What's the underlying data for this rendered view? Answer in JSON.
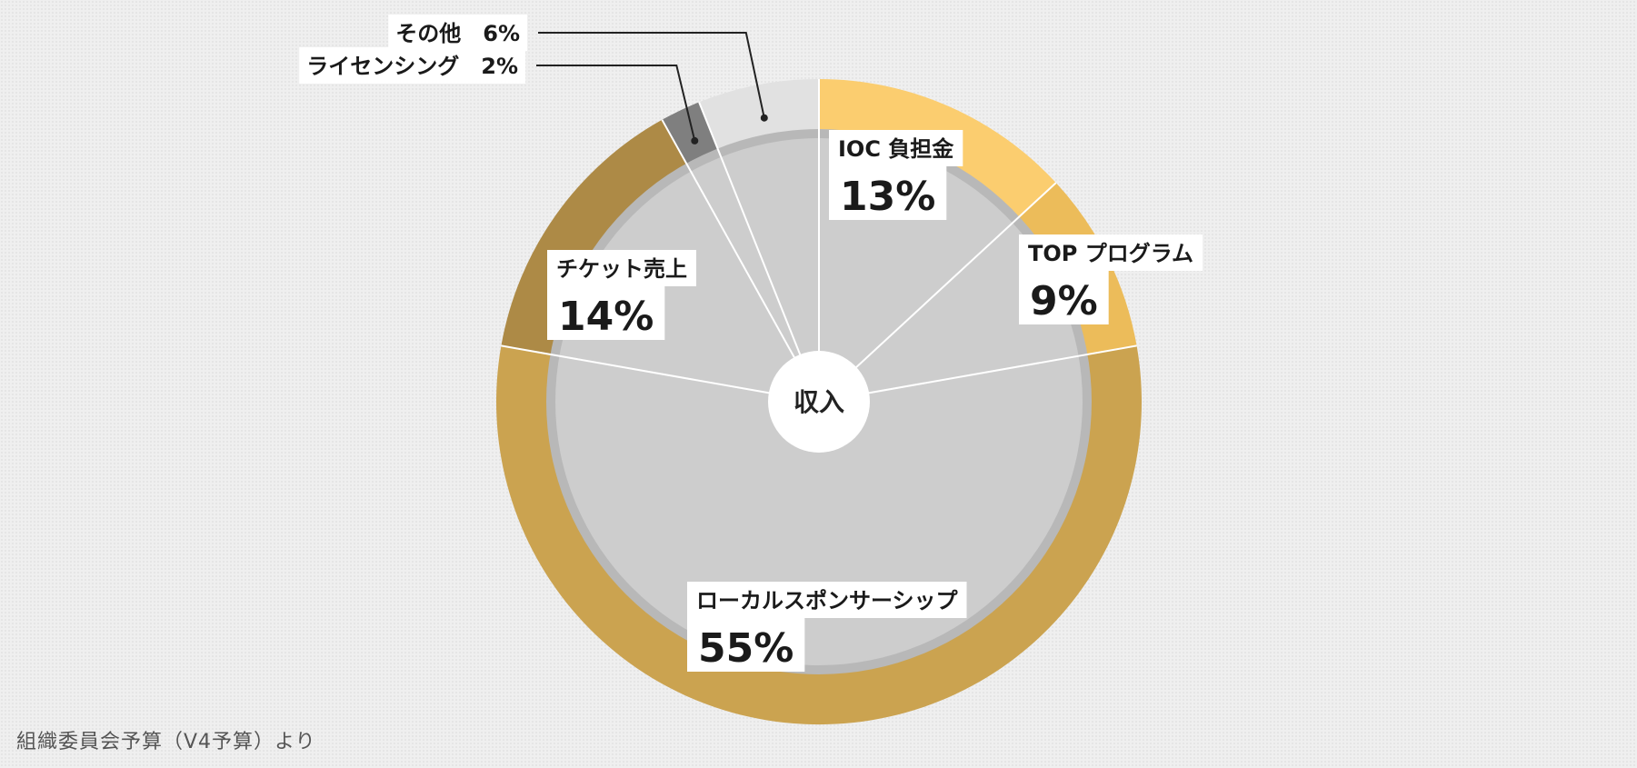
{
  "chart_data": {
    "type": "pie",
    "center_label": "収入",
    "slices": [
      {
        "label": "IOC 負担金",
        "value": 13,
        "value_text": "13%",
        "color": "#fbcd6f",
        "label_style": "large"
      },
      {
        "label": "TOP プログラム",
        "value": 9,
        "value_text": "9%",
        "color": "#ecbc5a",
        "label_style": "large"
      },
      {
        "label": "ローカルスポンサーシップ",
        "value": 55,
        "value_text": "55%",
        "color": "#cba350",
        "label_style": "large"
      },
      {
        "label": "チケット売上",
        "value": 14,
        "value_text": "14%",
        "color": "#ad8a46",
        "label_style": "large"
      },
      {
        "label": "ライセンシング",
        "value": 2,
        "value_text": "2%",
        "color": "#7f7f7f",
        "label_style": "callout"
      },
      {
        "label": "その他",
        "value": 6,
        "value_text": "6%",
        "color": "#e1e1e1",
        "label_style": "callout"
      }
    ]
  },
  "footer": {
    "source": "組織委員会予算（V4予算）より"
  }
}
